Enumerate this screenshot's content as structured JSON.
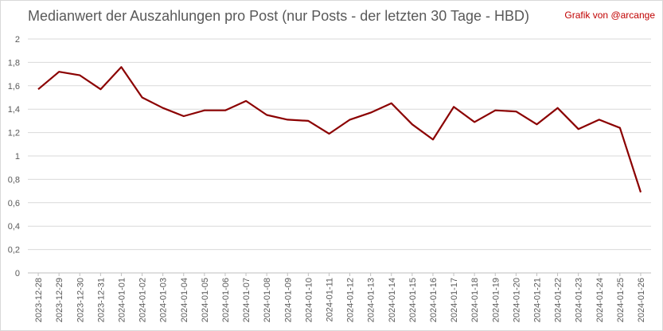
{
  "chart_data": {
    "type": "line",
    "title": "Medianwert der Auszahlungen pro Post (nur Posts - der letzten 30 Tage - HBD)",
    "credit": "Grafik von @arcange",
    "categories": [
      "2023-12-28",
      "2023-12-29",
      "2023-12-30",
      "2023-12-31",
      "2024-01-01",
      "2024-01-02",
      "2024-01-03",
      "2024-01-04",
      "2024-01-05",
      "2024-01-06",
      "2024-01-07",
      "2024-01-08",
      "2024-01-09",
      "2024-01-10",
      "2024-01-11",
      "2024-01-12",
      "2024-01-13",
      "2024-01-14",
      "2024-01-15",
      "2024-01-16",
      "2024-01-17",
      "2024-01-18",
      "2024-01-19",
      "2024-01-20",
      "2024-01-21",
      "2024-01-22",
      "2024-01-23",
      "2024-01-24",
      "2024-01-25",
      "2024-01-26"
    ],
    "values": [
      1.57,
      1.72,
      1.69,
      1.57,
      1.76,
      1.5,
      1.41,
      1.34,
      1.39,
      1.39,
      1.47,
      1.35,
      1.31,
      1.3,
      1.19,
      1.31,
      1.37,
      1.45,
      1.27,
      1.14,
      1.42,
      1.29,
      1.39,
      1.38,
      1.27,
      1.41,
      1.23,
      1.31,
      1.24,
      0.69
    ],
    "ylim": [
      0,
      2
    ],
    "yticks": [
      "0",
      "0,2",
      "0,4",
      "0,6",
      "0,8",
      "1",
      "1,2",
      "1,4",
      "1,6",
      "1,8",
      "2"
    ],
    "grid": true,
    "line_color": "#8b0000"
  }
}
